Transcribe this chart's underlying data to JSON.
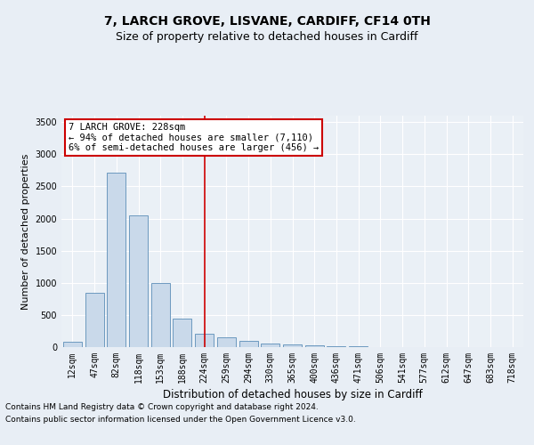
{
  "title1": "7, LARCH GROVE, LISVANE, CARDIFF, CF14 0TH",
  "title2": "Size of property relative to detached houses in Cardiff",
  "xlabel": "Distribution of detached houses by size in Cardiff",
  "ylabel": "Number of detached properties",
  "categories": [
    "12sqm",
    "47sqm",
    "82sqm",
    "118sqm",
    "153sqm",
    "188sqm",
    "224sqm",
    "259sqm",
    "294sqm",
    "330sqm",
    "365sqm",
    "400sqm",
    "436sqm",
    "471sqm",
    "506sqm",
    "541sqm",
    "577sqm",
    "612sqm",
    "647sqm",
    "683sqm",
    "718sqm"
  ],
  "values": [
    80,
    840,
    2720,
    2050,
    1000,
    450,
    210,
    155,
    100,
    60,
    40,
    25,
    15,
    10,
    5,
    3,
    3,
    2,
    2,
    1,
    1
  ],
  "bar_color": "#c9d9ea",
  "bar_edge_color": "#5b8db8",
  "vline_x_index": 6,
  "vline_color": "#cc0000",
  "annotation_text": "7 LARCH GROVE: 228sqm\n← 94% of detached houses are smaller (7,110)\n6% of semi-detached houses are larger (456) →",
  "annotation_box_color": "#ffffff",
  "annotation_box_edge_color": "#cc0000",
  "ylim": [
    0,
    3600
  ],
  "yticks": [
    0,
    500,
    1000,
    1500,
    2000,
    2500,
    3000,
    3500
  ],
  "bg_color": "#e8eef5",
  "plot_bg_color": "#eaf0f6",
  "footer1": "Contains HM Land Registry data © Crown copyright and database right 2024.",
  "footer2": "Contains public sector information licensed under the Open Government Licence v3.0.",
  "title1_fontsize": 10,
  "title2_fontsize": 9,
  "xlabel_fontsize": 8.5,
  "ylabel_fontsize": 8,
  "tick_fontsize": 7,
  "annotation_fontsize": 7.5,
  "footer_fontsize": 6.5
}
